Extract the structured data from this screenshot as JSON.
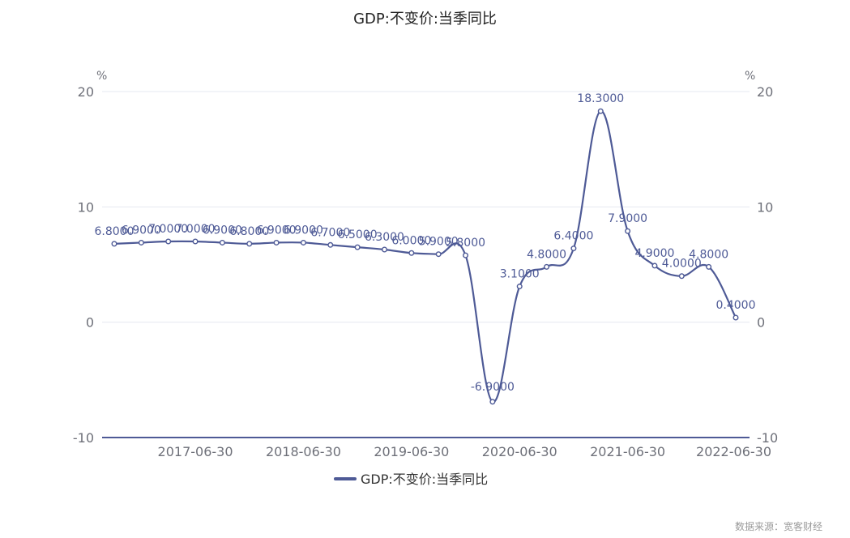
{
  "chart_data": {
    "type": "line",
    "title": "GDP:不变价:当季同比",
    "y_unit_left": "%",
    "y_unit_right": "%",
    "ylim": [
      -10,
      20
    ],
    "yticks": [
      20,
      10,
      0,
      -10
    ],
    "x_tick_labels": [
      "2017-06-30",
      "2018-06-30",
      "2019-06-30",
      "2020-06-30",
      "2021-06-30",
      "2022-06-30"
    ],
    "series": [
      {
        "name": "GDP:不变价:当季同比",
        "color": "#4e5a96",
        "x": [
          "2016-09-30",
          "2016-12-31",
          "2017-03-31",
          "2017-06-30",
          "2017-09-30",
          "2017-12-31",
          "2018-03-31",
          "2018-06-30",
          "2018-09-30",
          "2018-12-31",
          "2019-03-31",
          "2019-06-30",
          "2019-09-30",
          "2019-12-31",
          "2020-03-31",
          "2020-06-30",
          "2020-09-30",
          "2020-12-31",
          "2021-03-31",
          "2021-06-30",
          "2021-09-30",
          "2021-12-31",
          "2022-03-31",
          "2022-06-30"
        ],
        "values": [
          6.8,
          6.9,
          7.0,
          7.0,
          6.9,
          6.8,
          6.9,
          6.9,
          6.7,
          6.5,
          6.3,
          6.0,
          5.9,
          5.8,
          -6.9,
          3.1,
          4.8,
          6.4,
          18.3,
          7.9,
          4.9,
          4.0,
          4.8,
          0.4
        ],
        "labels": [
          "6.8000",
          "6.9000",
          "7.0000",
          "7.0000",
          "6.9000",
          "6.8000",
          "6.9000",
          "6.9000",
          "6.7000",
          "6.5000",
          "6.3000",
          "6.0000",
          "5.9000",
          "5.8000",
          "-6.9000",
          "3.1000",
          "4.8000",
          "6.4000",
          "18.3000",
          "7.9000",
          "4.9000",
          "4.0000",
          "4.8000",
          "0.4000"
        ]
      }
    ],
    "legend": {
      "position": "bottom",
      "label": "GDP:不变价:当季同比"
    },
    "grid": true
  },
  "source_text": "数据来源：宽客财经"
}
